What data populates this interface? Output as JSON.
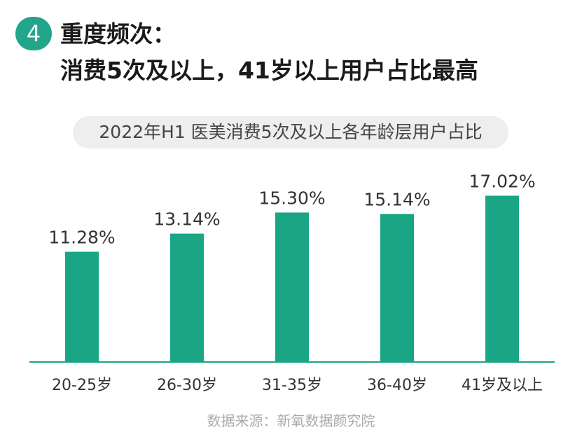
{
  "header": {
    "badge": "4",
    "title_line1": "重度频次：",
    "title_line2": "消费5次及以上，41岁以上用户占比最高"
  },
  "subtitle": "2022年H1 医美消费5次及以上各年龄层用户占比",
  "chart_data": {
    "type": "bar",
    "categories": [
      "20-25岁",
      "26-30岁",
      "31-35岁",
      "36-40岁",
      "41岁及以上"
    ],
    "values": [
      11.28,
      13.14,
      15.3,
      15.14,
      17.02
    ],
    "value_labels": [
      "11.28%",
      "13.14%",
      "15.30%",
      "15.14%",
      "17.02%"
    ],
    "unit": "%",
    "ylim": [
      0,
      22
    ],
    "grid": false,
    "bar_color": "#1aa584"
  },
  "source": "数据来源：新氧数据颜究院",
  "colors": {
    "accent": "#22a58a",
    "axis": "#1aa584"
  }
}
